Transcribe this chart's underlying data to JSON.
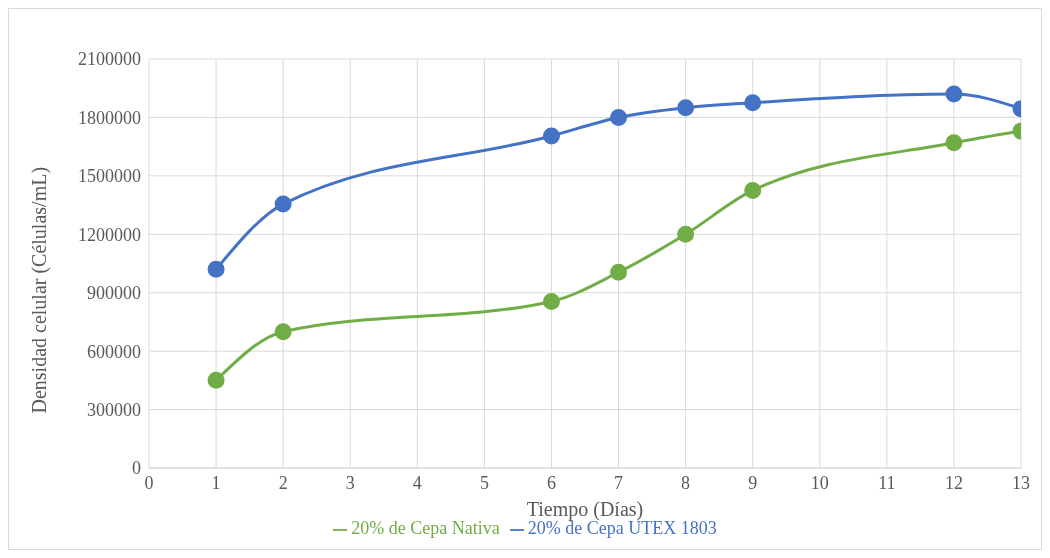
{
  "chart_data": {
    "type": "line",
    "xlabel": "Tiempo (Días)",
    "ylabel": "Densidad celular (Células/mL)",
    "x": [
      1,
      2,
      6,
      7,
      8,
      9,
      12,
      13
    ],
    "series": [
      {
        "name": "20% de Cepa Nativa",
        "color": "#70ad47",
        "values": [
          450000,
          700000,
          855000,
          1005000,
          1200000,
          1425000,
          1670000,
          1730000
        ]
      },
      {
        "name": "20% de Cepa UTEX 1803",
        "color": "#4472c4",
        "values": [
          1020000,
          1355000,
          1705000,
          1800000,
          1850000,
          1875000,
          1920000,
          1845000
        ]
      }
    ],
    "xlim": [
      0,
      13
    ],
    "xticks": [
      0,
      1,
      2,
      3,
      4,
      5,
      6,
      7,
      8,
      9,
      10,
      11,
      12,
      13
    ],
    "ylim": [
      0,
      2100000
    ],
    "yticks": [
      0,
      300000,
      600000,
      900000,
      1200000,
      1500000,
      1800000,
      2100000
    ],
    "grid": true,
    "legend": "bottom",
    "marker": "circle",
    "line_style": "solid"
  }
}
